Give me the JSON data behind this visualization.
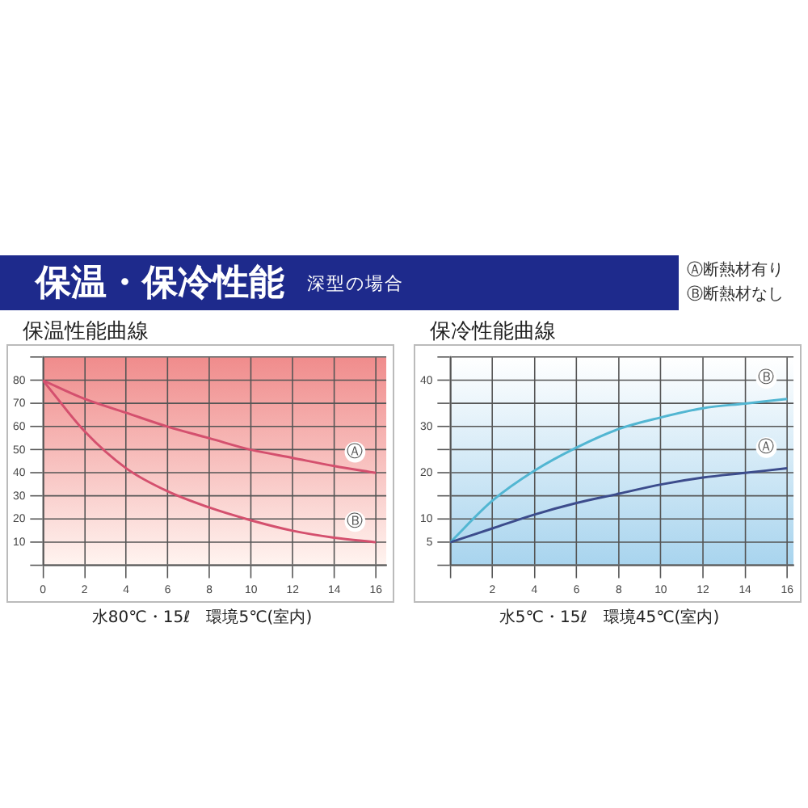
{
  "chart_data": [
    {
      "type": "line",
      "title": "保温性能曲線",
      "x": [
        0,
        2,
        4,
        6,
        8,
        10,
        12,
        14,
        16
      ],
      "series": [
        {
          "name": "Ⓐ",
          "color": "#d4506e",
          "values": [
            80,
            72,
            66,
            60,
            55,
            50,
            46.5,
            43,
            40
          ]
        },
        {
          "name": "Ⓑ",
          "color": "#d4506e",
          "values": [
            80,
            58,
            42,
            32,
            25,
            19.5,
            15,
            12,
            10
          ]
        }
      ],
      "xlim": [
        0,
        16.5
      ],
      "xticks": [
        0,
        2,
        4,
        6,
        8,
        10,
        12,
        14,
        16
      ],
      "ylim": [
        0,
        90
      ],
      "yticks": [
        {
          "value": 0,
          "label": null
        },
        10,
        20,
        30,
        40,
        50,
        60,
        70,
        80,
        {
          "value": 90,
          "label": null
        }
      ],
      "grid": true,
      "marker": "none",
      "line_style": "solid",
      "annotations": [
        "保温・保冷性能",
        "深型の場合",
        "Ⓐ断熱材有り",
        "Ⓑ断熱材なし",
        "水80℃・15ℓ　環境5℃(室内)"
      ]
    },
    {
      "type": "line",
      "title": "保冷性能曲線",
      "x": [
        0,
        2,
        4,
        6,
        8,
        10,
        12,
        14,
        16
      ],
      "series": [
        {
          "name": "Ⓐ",
          "color": "#3c4c8c",
          "values": [
            5,
            8,
            11,
            13.5,
            15.5,
            17.5,
            19,
            20,
            21
          ]
        },
        {
          "name": "Ⓑ",
          "color": "#52b6d2",
          "values": [
            5,
            14,
            20.5,
            25.5,
            29.5,
            32,
            34,
            35,
            36
          ]
        }
      ],
      "xlim": [
        0,
        16.3
      ],
      "xticks": [
        {
          "value": 0,
          "label": null
        },
        2,
        4,
        6,
        8,
        10,
        12,
        14,
        16
      ],
      "ylim": [
        0,
        45
      ],
      "yticks": [
        {
          "value": 0,
          "label": null
        },
        5,
        10,
        {
          "value": 15,
          "label": null
        },
        20,
        {
          "value": 25,
          "label": null
        },
        30,
        {
          "value": 35,
          "label": null
        },
        40,
        {
          "value": 45,
          "label": null
        }
      ],
      "grid": true,
      "marker": "none",
      "line_style": "solid",
      "annotations": [
        "水5℃・15ℓ　環境45℃(室内)"
      ]
    }
  ]
}
